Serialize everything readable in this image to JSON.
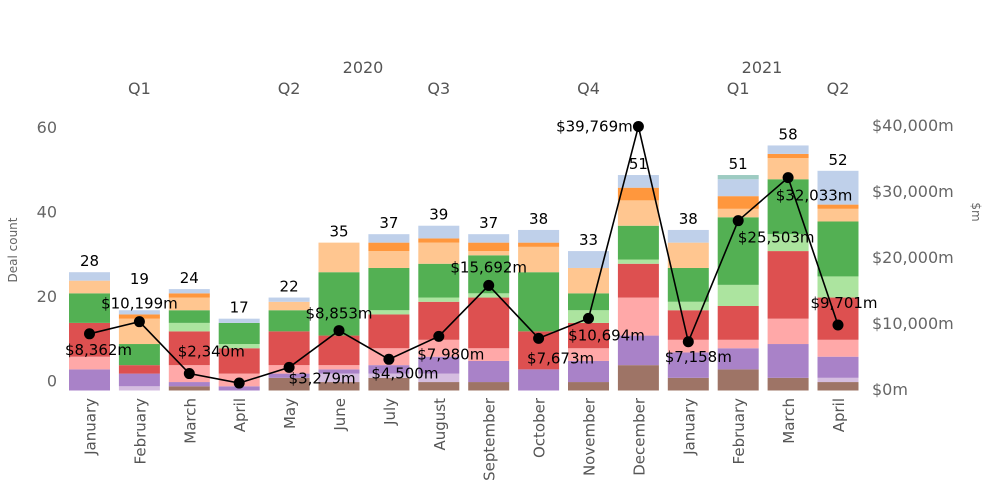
{
  "chart_data": {
    "type": "bar",
    "subtype": "stacked bar with line overlay (dual axis)",
    "headers": {
      "years": [
        {
          "label": "2020",
          "months": [
            0,
            11
          ]
        },
        {
          "label": "2021",
          "months": [
            12,
            15
          ]
        }
      ],
      "quarters": [
        {
          "label": "Q1",
          "months": [
            0,
            2
          ]
        },
        {
          "label": "Q2",
          "months": [
            3,
            5
          ]
        },
        {
          "label": "Q3",
          "months": [
            6,
            8
          ]
        },
        {
          "label": "Q4",
          "months": [
            9,
            11
          ]
        },
        {
          "label": "Q1",
          "months": [
            12,
            14
          ]
        },
        {
          "label": "Q2",
          "months": [
            15,
            15
          ]
        }
      ]
    },
    "categories": [
      "January",
      "February",
      "March",
      "April",
      "May",
      "June",
      "July",
      "August",
      "September",
      "October",
      "November",
      "December",
      "January",
      "February",
      "March",
      "April"
    ],
    "ylabel": "Deal count",
    "ylim": [
      0,
      62
    ],
    "yticks": [
      "0",
      "20",
      "40",
      "60"
    ],
    "ytick_values": [
      0,
      20,
      40,
      60
    ],
    "y2label": "$m",
    "y2lim": [
      0,
      44000
    ],
    "y2ticks": [
      "$0m",
      "$10,000m",
      "$20,000m",
      "$30,000m",
      "$40,000m"
    ],
    "y2tick_values": [
      0,
      10000,
      20000,
      30000,
      40000
    ],
    "grid": false,
    "legend": "none",
    "totals": [
      "28",
      "19",
      "24",
      "17",
      "22",
      "35",
      "37",
      "39",
      "37",
      "38",
      "33",
      "51",
      "38",
      "51",
      "58",
      "52"
    ],
    "series": [
      {
        "color": "#9e7466",
        "values": [
          0,
          0,
          1,
          0,
          3,
          2,
          3,
          2,
          2,
          0,
          2,
          6,
          3,
          5,
          3,
          2
        ]
      },
      {
        "color": "#d5bde0",
        "values": [
          0,
          1,
          0,
          0,
          0,
          2,
          1,
          2,
          0,
          0,
          0,
          0,
          0,
          0,
          0,
          1
        ]
      },
      {
        "color": "#a982c8",
        "values": [
          5,
          3,
          1,
          1,
          1,
          1,
          2,
          4,
          5,
          5,
          5,
          7,
          6,
          5,
          8,
          5
        ]
      },
      {
        "color": "#ffa8a8",
        "values": [
          3,
          0,
          4,
          3,
          2,
          1,
          4,
          4,
          3,
          0,
          3,
          9,
          3,
          2,
          6,
          4
        ]
      },
      {
        "color": "#dd5050",
        "values": [
          8,
          2,
          8,
          6,
          8,
          7,
          8,
          9,
          12,
          9,
          6,
          8,
          7,
          8,
          16,
          10
        ]
      },
      {
        "color": "#ace49f",
        "values": [
          0,
          0,
          2,
          1,
          0,
          0,
          1,
          1,
          1,
          0,
          3,
          1,
          2,
          5,
          4,
          5
        ]
      },
      {
        "color": "#53b053",
        "values": [
          7,
          5,
          3,
          5,
          5,
          15,
          10,
          8,
          9,
          14,
          4,
          8,
          8,
          16,
          13,
          13
        ]
      },
      {
        "color": "#ffc690",
        "values": [
          3,
          6,
          3,
          0,
          2,
          7,
          4,
          5,
          1,
          6,
          6,
          6,
          6,
          2,
          5,
          3
        ]
      },
      {
        "color": "#ff973d",
        "values": [
          0,
          1,
          1,
          0,
          0,
          0,
          2,
          1,
          2,
          1,
          0,
          3,
          0,
          3,
          1,
          1
        ]
      },
      {
        "color": "#bfd0ea",
        "values": [
          2,
          1,
          1,
          1,
          1,
          0,
          2,
          3,
          2,
          3,
          4,
          3,
          3,
          4,
          2,
          8
        ]
      },
      {
        "color": "#9dcbc2",
        "values": [
          0,
          0,
          0,
          0,
          0,
          0,
          0,
          0,
          0,
          0,
          0,
          0,
          0,
          1,
          0,
          0
        ]
      }
    ],
    "line": {
      "color": "#000000",
      "values": [
        8362,
        10199,
        2340,
        900,
        3279,
        8853,
        4500,
        7980,
        15692,
        7673,
        10694,
        39769,
        7158,
        25503,
        32033,
        9701
      ],
      "labels": [
        "$8,362m",
        "$10,199m",
        "$2,340m",
        null,
        "$3,279m",
        "$8,853m",
        "$4,500m",
        "$7,980m",
        "$15,692m",
        "$7,673m",
        "$10,694m",
        "$39,769m",
        "$7,158m",
        "$25,503m",
        "$32,033m",
        "$9,701m"
      ]
    }
  }
}
